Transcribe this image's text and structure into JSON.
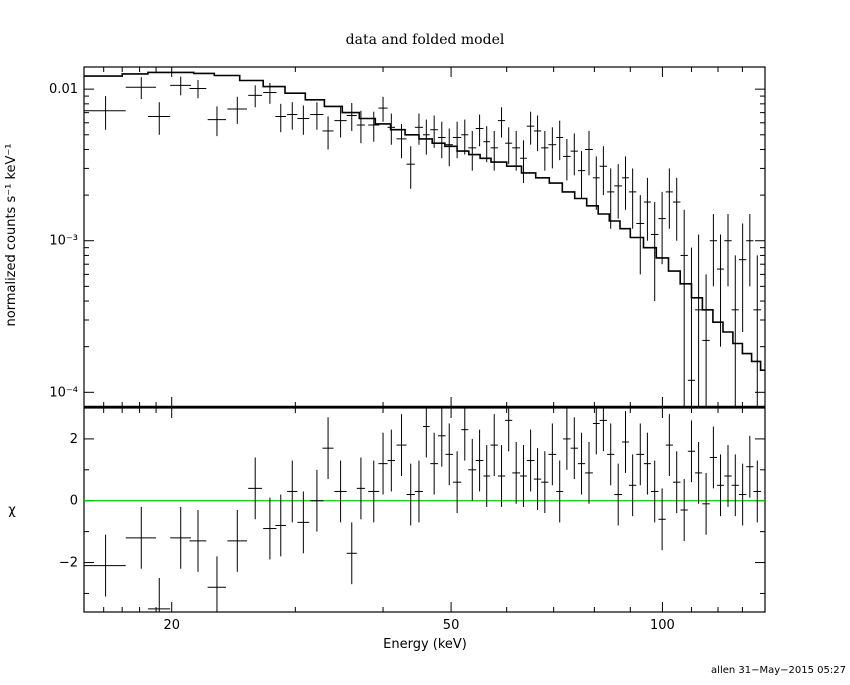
{
  "chart_data": [
    {
      "panel": "top",
      "type": "scatter",
      "title": "data and folded model",
      "xlabel": "",
      "ylabel": "normalized counts s⁻¹ keV⁻¹",
      "x_scale": "log",
      "y_scale": "log",
      "xlim": [
        15.0,
        140.0
      ],
      "ylim": [
        8e-05,
        0.014
      ],
      "y_ticks": [
        {
          "value": 0.01,
          "label": "0.01"
        },
        {
          "value": 0.001,
          "label": "10⁻³"
        },
        {
          "value": 0.0001,
          "label": "10⁻⁴"
        }
      ],
      "data": {
        "x": [
          16.1,
          18.1,
          19.2,
          20.6,
          21.8,
          23.2,
          24.8,
          26.3,
          27.6,
          28.6,
          29.7,
          30.8,
          32.2,
          33.4,
          34.8,
          36.1,
          37.2,
          38.8,
          40.0,
          41.1,
          42.5,
          43.8,
          45.0,
          46.1,
          47.3,
          48.5,
          49.7,
          51.0,
          52.3,
          53.6,
          54.9,
          56.2,
          57.6,
          59.0,
          60.4,
          61.9,
          63.4,
          64.9,
          66.4,
          68.0,
          69.7,
          71.4,
          73.1,
          74.9,
          76.7,
          78.6,
          80.5,
          82.4,
          84.4,
          86.5,
          88.6,
          90.7,
          93.0,
          95.2,
          97.5,
          99.9,
          102.3,
          104.8,
          107.4,
          110.0,
          112.6,
          115.4,
          118.2,
          121.0,
          124.0,
          127.0,
          130.1,
          133.2,
          136.5
        ],
        "y": [
          0.0072,
          0.0103,
          0.0066,
          0.0106,
          0.0101,
          0.0063,
          0.0074,
          0.0091,
          0.0095,
          0.0066,
          0.0068,
          0.0064,
          0.0068,
          0.0053,
          0.0062,
          0.0067,
          0.0058,
          0.0058,
          0.0075,
          0.0056,
          0.0047,
          0.0032,
          0.0056,
          0.005,
          0.0054,
          0.0048,
          0.0043,
          0.0048,
          0.005,
          0.0041,
          0.0055,
          0.0045,
          0.0041,
          0.0062,
          0.0044,
          0.0041,
          0.0035,
          0.0057,
          0.0053,
          0.0041,
          0.0043,
          0.0048,
          0.0036,
          0.0039,
          0.0029,
          0.004,
          0.0026,
          0.0031,
          0.0021,
          0.0023,
          0.0026,
          0.0021,
          0.0013,
          0.0018,
          0.0011,
          0.0014,
          0.0021,
          0.0018,
          0.0008,
          0.00012,
          0.00035,
          0.00022,
          0.001,
          0.00065,
          0.001,
          0.00035,
          0.00075,
          0.001,
          0.00035
        ],
        "xerr": [
          1.1,
          0.9,
          0.7,
          0.7,
          0.6,
          0.7,
          0.8,
          0.6,
          0.6,
          0.5,
          0.5,
          0.6,
          0.7,
          0.6,
          0.7,
          0.6,
          0.5,
          0.7,
          0.6,
          0.5,
          0.7,
          0.6,
          0.6,
          0.5,
          0.6,
          0.6,
          0.6,
          0.7,
          0.6,
          0.7,
          0.7,
          0.6,
          0.7,
          0.7,
          0.7,
          0.8,
          0.7,
          0.8,
          0.8,
          0.8,
          0.9,
          0.8,
          0.9,
          0.9,
          0.9,
          1.0,
          0.9,
          1.0,
          1.0,
          1.1,
          1.0,
          1.1,
          1.2,
          1.1,
          1.2,
          1.2,
          1.2,
          1.3,
          1.3,
          1.3,
          1.3,
          1.4,
          1.4,
          1.4,
          1.5,
          1.5,
          1.6,
          1.6,
          1.7
        ],
        "ylo": [
          0.0054,
          0.0086,
          0.005,
          0.0091,
          0.0087,
          0.0049,
          0.0059,
          0.0076,
          0.008,
          0.0052,
          0.0054,
          0.005,
          0.0054,
          0.004,
          0.0048,
          0.0053,
          0.0044,
          0.0045,
          0.0061,
          0.0043,
          0.0035,
          0.0022,
          0.0043,
          0.0037,
          0.0041,
          0.0035,
          0.0031,
          0.0035,
          0.0037,
          0.0029,
          0.0042,
          0.0033,
          0.0029,
          0.0048,
          0.0032,
          0.0029,
          0.0024,
          0.0043,
          0.0039,
          0.0029,
          0.003,
          0.0034,
          0.0025,
          0.0027,
          0.0019,
          0.0027,
          0.0016,
          0.002,
          0.0012,
          0.0014,
          0.0016,
          0.0012,
          0.0006,
          0.001,
          0.0004,
          0.0007,
          0.0012,
          0.001,
          8e-05,
          8e-05,
          8e-05,
          8e-05,
          0.0005,
          0.0002,
          0.0005,
          8e-05,
          0.00025,
          0.0005,
          8e-05
        ],
        "yhi": [
          0.009,
          0.012,
          0.0082,
          0.0121,
          0.0115,
          0.0077,
          0.0089,
          0.0106,
          0.011,
          0.008,
          0.0082,
          0.0078,
          0.0082,
          0.0066,
          0.0076,
          0.0081,
          0.0072,
          0.0071,
          0.0089,
          0.0069,
          0.0059,
          0.0042,
          0.0069,
          0.0063,
          0.0067,
          0.0061,
          0.0055,
          0.0061,
          0.0063,
          0.0053,
          0.0068,
          0.0057,
          0.0053,
          0.0076,
          0.0056,
          0.0053,
          0.0046,
          0.0071,
          0.0067,
          0.0053,
          0.0056,
          0.0062,
          0.0047,
          0.0051,
          0.0039,
          0.0053,
          0.0036,
          0.0042,
          0.003,
          0.0032,
          0.0036,
          0.003,
          0.002,
          0.0026,
          0.0018,
          0.0021,
          0.003,
          0.0026,
          0.0016,
          0.0009,
          0.0011,
          0.0006,
          0.0015,
          0.0011,
          0.0015,
          0.0008,
          0.0013,
          0.0015,
          0.0008
        ]
      },
      "model": {
        "x": [
          15.0,
          17.0,
          18.5,
          20.0,
          21.5,
          23.0,
          25.0,
          27.0,
          29.0,
          31.0,
          33.0,
          35.0,
          37.0,
          39.0,
          41.0,
          43.0,
          45.0,
          47.0,
          49.0,
          51.0,
          53.0,
          55.0,
          57.0,
          60.0,
          63.0,
          66.0,
          69.0,
          72.0,
          75.0,
          78.0,
          81.0,
          84.0,
          87.0,
          90.0,
          94.0,
          98.0,
          102.0,
          106.0,
          110.0,
          114.0,
          118.0,
          122.0,
          126.0,
          130.0,
          134.0,
          138.0,
          140.0
        ],
        "y": [
          0.0122,
          0.0126,
          0.0129,
          0.0129,
          0.0127,
          0.0123,
          0.0114,
          0.0104,
          0.0094,
          0.0085,
          0.0077,
          0.007,
          0.0064,
          0.0059,
          0.0054,
          0.005,
          0.0047,
          0.0044,
          0.0042,
          0.0039,
          0.0037,
          0.0035,
          0.0033,
          0.0031,
          0.0028,
          0.0026,
          0.0024,
          0.0021,
          0.0019,
          0.0017,
          0.0015,
          0.00135,
          0.0012,
          0.00105,
          0.0009,
          0.00077,
          0.00063,
          0.00052,
          0.00042,
          0.00035,
          0.00029,
          0.00025,
          0.00021,
          0.00018,
          0.00016,
          0.00014,
          0.00013
        ]
      }
    },
    {
      "panel": "bottom",
      "type": "scatter",
      "xlabel": "Energy (keV)",
      "ylabel": "χ",
      "x_scale": "log",
      "y_scale": "linear",
      "xlim": [
        15.0,
        140.0
      ],
      "ylim": [
        -3.6,
        3.0
      ],
      "x_ticks": [
        {
          "value": 20,
          "label": "20"
        },
        {
          "value": 50,
          "label": "50"
        },
        {
          "value": 100,
          "label": "100"
        }
      ],
      "y_ticks": [
        {
          "value": 2,
          "label": "2"
        },
        {
          "value": 0,
          "label": "0"
        },
        {
          "value": -2,
          "label": "−2"
        }
      ],
      "reference_line": {
        "y": 0,
        "color": "#00cc00"
      },
      "data": {
        "x": [
          16.1,
          18.1,
          19.2,
          20.6,
          21.8,
          23.2,
          24.8,
          26.3,
          27.6,
          28.6,
          29.7,
          30.8,
          32.2,
          33.4,
          34.8,
          36.1,
          37.2,
          38.8,
          40.0,
          41.1,
          42.5,
          43.8,
          45.0,
          46.1,
          47.3,
          48.5,
          49.7,
          51.0,
          52.3,
          53.6,
          54.9,
          56.2,
          57.6,
          59.0,
          60.4,
          61.9,
          63.4,
          64.9,
          66.4,
          68.0,
          69.7,
          71.4,
          73.1,
          74.9,
          76.7,
          78.6,
          80.5,
          82.4,
          84.4,
          86.5,
          88.6,
          90.7,
          93.0,
          95.2,
          97.5,
          99.9,
          102.3,
          104.8,
          107.4,
          110.0,
          112.6,
          115.4,
          118.2,
          121.0,
          124.0,
          127.0,
          130.1,
          133.2,
          136.5
        ],
        "y": [
          -2.1,
          -1.2,
          -3.5,
          -1.2,
          -1.3,
          -2.8,
          -1.3,
          0.4,
          -0.9,
          -0.8,
          0.3,
          -0.7,
          -0.0,
          1.7,
          0.3,
          -1.7,
          0.4,
          0.3,
          1.2,
          1.3,
          1.8,
          0.2,
          0.3,
          2.4,
          1.2,
          2.1,
          1.5,
          0.6,
          2.3,
          1.0,
          1.3,
          0.8,
          1.8,
          0.8,
          2.6,
          0.9,
          0.8,
          1.3,
          0.7,
          0.6,
          1.5,
          0.3,
          2.0,
          1.7,
          1.2,
          0.9,
          2.5,
          2.6,
          1.5,
          0.2,
          1.9,
          0.5,
          1.5,
          1.2,
          0.3,
          -0.6,
          1.8,
          0.6,
          -0.3,
          1.6,
          0.9,
          -0.1,
          1.4,
          0.5,
          0.8,
          0.5,
          0.2,
          1.1,
          0.3
        ],
        "xerr": [
          1.1,
          0.9,
          0.7,
          0.7,
          0.6,
          0.7,
          0.8,
          0.6,
          0.6,
          0.5,
          0.5,
          0.6,
          0.7,
          0.6,
          0.7,
          0.6,
          0.5,
          0.7,
          0.6,
          0.5,
          0.7,
          0.6,
          0.6,
          0.5,
          0.6,
          0.6,
          0.6,
          0.7,
          0.6,
          0.7,
          0.7,
          0.6,
          0.7,
          0.7,
          0.7,
          0.8,
          0.7,
          0.8,
          0.8,
          0.8,
          0.9,
          0.8,
          0.9,
          0.9,
          0.9,
          1.0,
          0.9,
          1.0,
          1.0,
          1.1,
          1.0,
          1.1,
          1.2,
          1.1,
          1.2,
          1.2,
          1.2,
          1.3,
          1.3,
          1.3,
          1.3,
          1.4,
          1.4,
          1.4,
          1.5,
          1.5,
          1.6,
          1.6,
          1.7
        ],
        "yerr": 1.0
      }
    }
  ],
  "footer": {
    "stamp": "allen 31−May−2015 05:27"
  }
}
